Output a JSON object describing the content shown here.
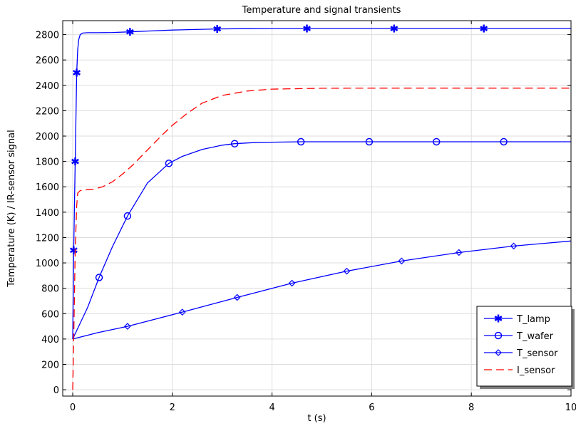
{
  "chart_data": {
    "type": "line",
    "title": "Temperature and signal transients",
    "xlabel": "t (s)",
    "ylabel": "Temperature (K) / IR-sensor signal",
    "xlim": [
      -0.2,
      10
    ],
    "ylim": [
      -50,
      2910
    ],
    "xticks": [
      0,
      2,
      4,
      6,
      8,
      10
    ],
    "xtick_labels": [
      "0",
      "2",
      "4",
      "6",
      "8",
      "10"
    ],
    "yticks": [
      0,
      200,
      400,
      600,
      800,
      1000,
      1200,
      1400,
      1600,
      1800,
      2000,
      2200,
      2400,
      2600,
      2800
    ],
    "ytick_labels": [
      "0",
      "200",
      "400",
      "600",
      "800",
      "1000",
      "1200",
      "1400",
      "1600",
      "1800",
      "2000",
      "2200",
      "2400",
      "2600",
      "2800"
    ],
    "grid": true,
    "legend_position": "bottom-right",
    "series": [
      {
        "name": "T_lamp",
        "color": "#0000ff",
        "line_style": "solid",
        "marker": "asterisk",
        "x": [
          0,
          0.02,
          0.05,
          0.08,
          0.1,
          0.12,
          0.15,
          0.2,
          0.3,
          0.5,
          0.8,
          1.15,
          1.5,
          2.0,
          2.9,
          3.5,
          4.7,
          6.0,
          6.45,
          8.0,
          8.25,
          10
        ],
        "y": [
          400,
          1100,
          1800,
          2500,
          2680,
          2760,
          2800,
          2812,
          2815,
          2815,
          2817,
          2822,
          2828,
          2836,
          2845,
          2847,
          2848,
          2848,
          2848,
          2848,
          2848,
          2848
        ],
        "marker_x": [
          0.02,
          0.05,
          0.08,
          1.15,
          2.9,
          4.7,
          6.45,
          8.25
        ],
        "marker_y": [
          1100,
          1800,
          2500,
          2822,
          2845,
          2848,
          2848,
          2848
        ]
      },
      {
        "name": "T_wafer",
        "color": "#0000ff",
        "line_style": "solid",
        "marker": "circle",
        "x": [
          0,
          0.3,
          0.53,
          0.8,
          1.1,
          1.5,
          1.93,
          2.2,
          2.6,
          3.0,
          3.25,
          3.6,
          4.0,
          4.58,
          5.2,
          5.95,
          7.3,
          8.65,
          10
        ],
        "y": [
          400,
          650,
          885,
          1130,
          1370,
          1630,
          1785,
          1840,
          1895,
          1928,
          1940,
          1948,
          1952,
          1955,
          1955,
          1955,
          1955,
          1955,
          1955
        ],
        "marker_x": [
          0.53,
          1.1,
          1.93,
          3.25,
          4.58,
          5.95,
          7.3,
          8.65
        ],
        "marker_y": [
          885,
          1370,
          1785,
          1940,
          1955,
          1955,
          1955,
          1955
        ]
      },
      {
        "name": "T_sensor",
        "color": "#0000ff",
        "line_style": "solid",
        "marker": "diamond",
        "x": [
          0,
          0.5,
          1.1,
          2.2,
          3.3,
          4.4,
          5.5,
          6.6,
          7.75,
          8.85,
          10
        ],
        "y": [
          400,
          450,
          500,
          612,
          728,
          840,
          935,
          1015,
          1082,
          1133,
          1173
        ],
        "marker_x": [
          1.1,
          2.2,
          3.3,
          4.4,
          5.5,
          6.6,
          7.75,
          8.85
        ],
        "marker_y": [
          500,
          612,
          728,
          840,
          935,
          1015,
          1082,
          1133
        ]
      },
      {
        "name": "I_sensor",
        "color": "#ff0000",
        "line_style": "dashed",
        "marker": "none",
        "x": [
          0,
          0.02,
          0.05,
          0.08,
          0.1,
          0.15,
          0.2,
          0.4,
          0.6,
          0.8,
          1.0,
          1.2,
          1.5,
          1.8,
          2.0,
          2.3,
          2.6,
          3.0,
          3.5,
          4.0,
          5.0,
          6.0,
          7.0,
          8.0,
          9.0,
          10
        ],
        "y": [
          0,
          400,
          1100,
          1450,
          1550,
          1570,
          1575,
          1580,
          1600,
          1640,
          1700,
          1770,
          1890,
          2010,
          2085,
          2180,
          2260,
          2320,
          2355,
          2370,
          2377,
          2378,
          2378,
          2378,
          2378,
          2378
        ]
      }
    ]
  }
}
